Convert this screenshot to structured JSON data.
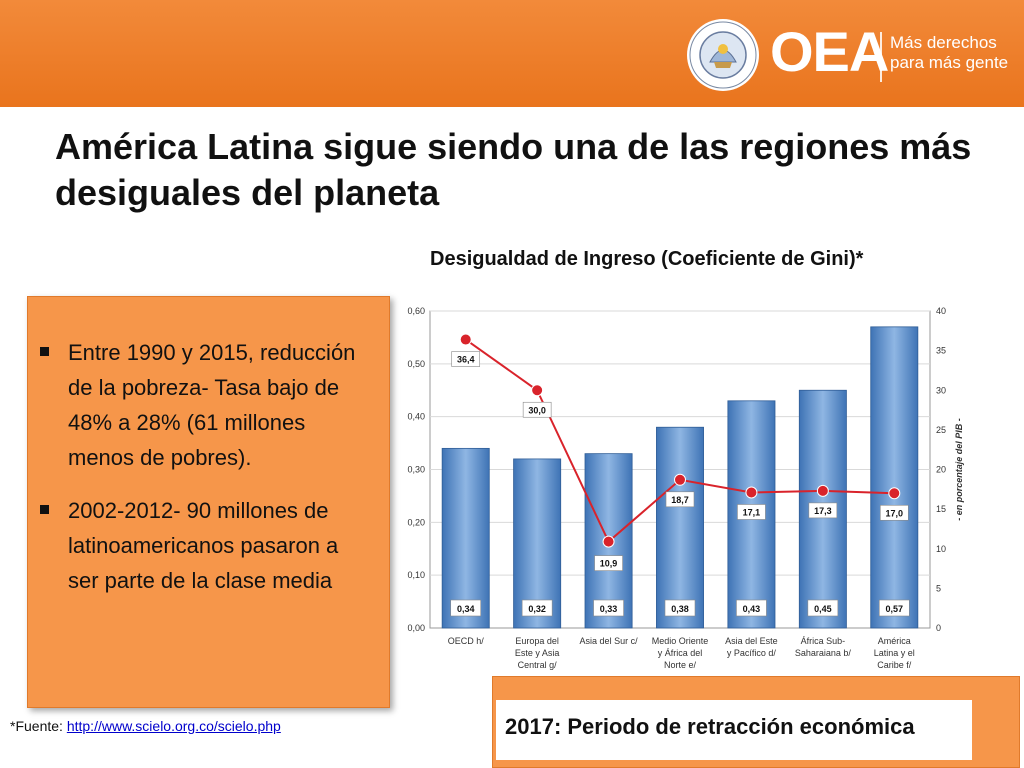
{
  "header": {
    "logo_text": "OEA",
    "tagline_1": "Más derechos",
    "tagline_2": "para más gente",
    "seal_text": "ORGANIZACION DE LOS ESTADOS AMERICANOS"
  },
  "title": "América Latina sigue siendo una de las regiones más desiguales del planeta",
  "bullets": [
    "Entre 1990 y 2015, reducción de la pobreza- Tasa bajo de 48% a 28% (61 millones menos de pobres).",
    "2002-2012- 90 millones de latinoamericanos pasaron a ser parte de la clase media"
  ],
  "source": {
    "label": "*Fuente: ",
    "link_text": "http://www.scielo.org.co/scielo.php"
  },
  "footer_note": "2017: Periodo de retracción económica",
  "colors": {
    "header": "#ee7d2a",
    "box": "#f6964a",
    "bar": "#5b8ec9",
    "line": "#d9232b"
  },
  "chart_data": {
    "type": "bar",
    "title": "Desigualdad de Ingreso (Coeficiente de Gini)*",
    "categories": [
      [
        "OECD h/"
      ],
      [
        "Europa del",
        "Este y Asia",
        "Central g/"
      ],
      [
        "Asia del Sur c/"
      ],
      [
        "Medio Oriente",
        "y África del",
        "Norte e/"
      ],
      [
        "Asia del Este",
        "y Pacífico d/"
      ],
      [
        "África Sub-",
        "Saharaiana b/"
      ],
      [
        "América",
        "Latina y el",
        "Caribe f/"
      ]
    ],
    "series": [
      {
        "kind": "bar",
        "axis": "left",
        "values": [
          0.34,
          0.32,
          0.33,
          0.38,
          0.43,
          0.45,
          0.57
        ],
        "labels": [
          "0,34",
          "0,32",
          "0,33",
          "0,38",
          "0,43",
          "0,45",
          "0,57"
        ]
      },
      {
        "kind": "line",
        "axis": "right",
        "values": [
          36.4,
          30.0,
          10.9,
          18.7,
          17.1,
          17.3,
          17.0
        ],
        "labels": [
          "36,4",
          "30,0",
          "10,9",
          "18,7",
          "17,1",
          "17,3",
          "17,0"
        ]
      }
    ],
    "left_axis": {
      "ticks": [
        "0,00",
        "0,10",
        "0,20",
        "0,30",
        "0,40",
        "0,50",
        "0,60"
      ],
      "range": [
        0,
        0.6
      ]
    },
    "right_axis": {
      "ticks": [
        "0",
        "5",
        "10",
        "15",
        "20",
        "25",
        "30",
        "35",
        "40"
      ],
      "range": [
        0,
        40
      ],
      "label": "- en porcentaje del PIB -"
    },
    "grid": true
  }
}
